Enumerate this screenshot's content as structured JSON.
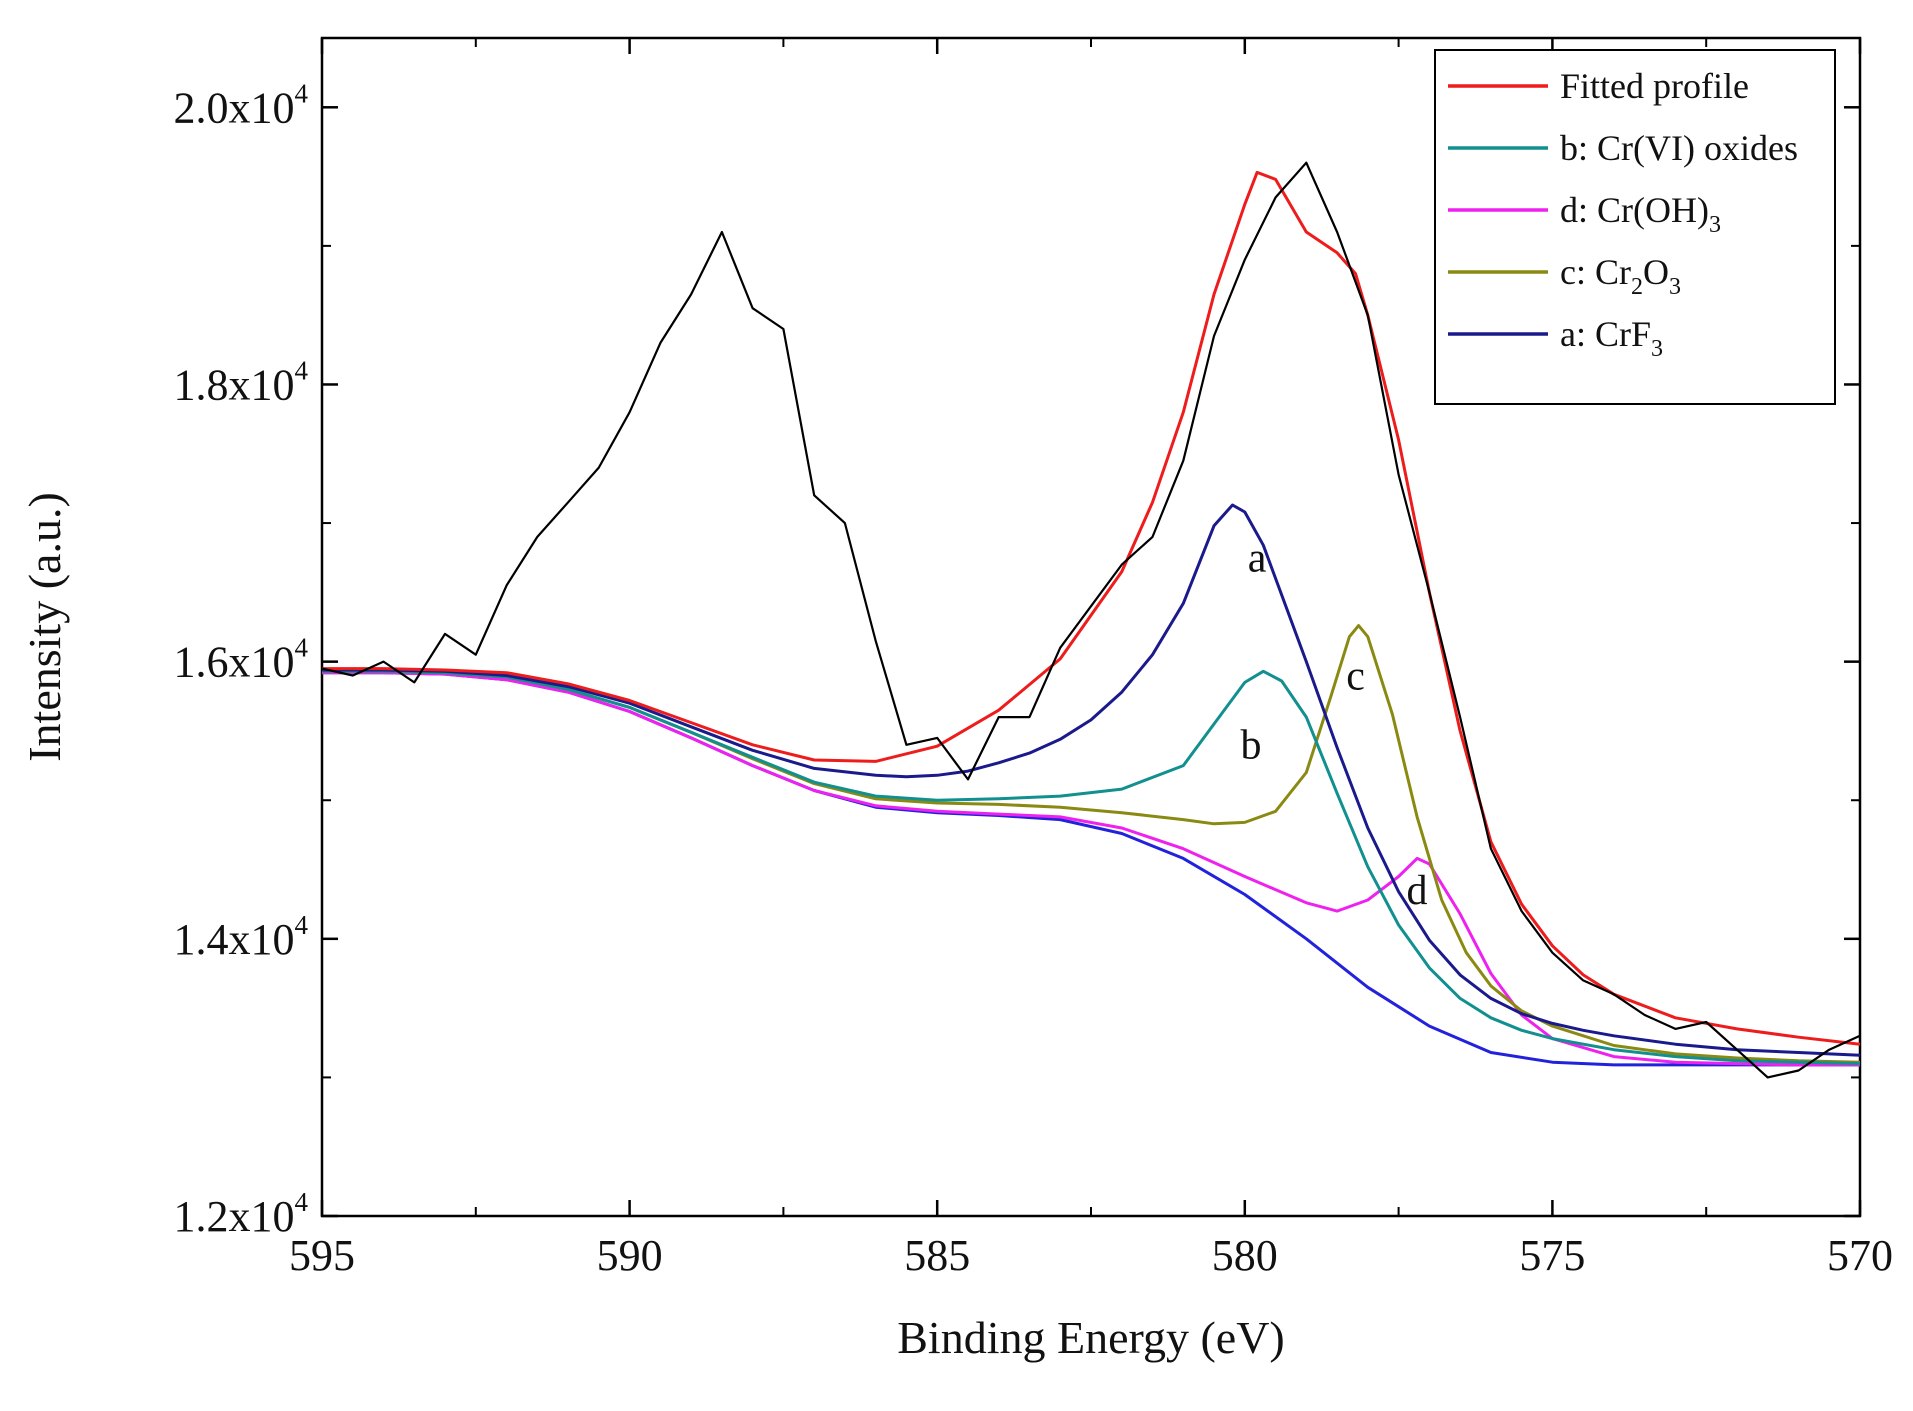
{
  "chart_data": {
    "type": "line",
    "title": "",
    "xlabel": "Binding Energy (eV)",
    "ylabel": "Intensity (a.u.)",
    "xlim": [
      595,
      570
    ],
    "ylim": [
      12000,
      20500
    ],
    "x_ticks": [
      {
        "value": 595,
        "label": "595"
      },
      {
        "value": 590,
        "label": "590"
      },
      {
        "value": 585,
        "label": "585"
      },
      {
        "value": 580,
        "label": "580"
      },
      {
        "value": 575,
        "label": "575"
      },
      {
        "value": 570,
        "label": "570"
      }
    ],
    "y_ticks": [
      {
        "value": 12000,
        "mantissa": "1.2x10",
        "exp": "4"
      },
      {
        "value": 14000,
        "mantissa": "1.4x10",
        "exp": "4"
      },
      {
        "value": 16000,
        "mantissa": "1.6x10",
        "exp": "4"
      },
      {
        "value": 18000,
        "mantissa": "1.8x10",
        "exp": "4"
      },
      {
        "value": 20000,
        "mantissa": "2.0x10",
        "exp": "4"
      }
    ],
    "legend": [
      {
        "key": "fitted",
        "text": "Fitted profile",
        "sub": "",
        "tail": "",
        "color": "#ee1c1c"
      },
      {
        "key": "b",
        "text": "b: Cr(VI) oxides",
        "sub": "",
        "tail": "",
        "color": "#128f8f"
      },
      {
        "key": "d",
        "text": "d: Cr(OH)",
        "sub": "3",
        "tail": "",
        "color": "#ee22ee"
      },
      {
        "key": "c",
        "text": "c: Cr",
        "sub": "2",
        "tail": "O",
        "sub2": "3",
        "color": "#8a8a12"
      },
      {
        "key": "a",
        "text": "a: CrF",
        "sub": "3",
        "tail": "",
        "color": "#1a1a8c"
      }
    ],
    "peak_labels": [
      {
        "text": "a",
        "x": 579.8,
        "y": 16650
      },
      {
        "text": "b",
        "x": 579.9,
        "y": 15300
      },
      {
        "text": "c",
        "x": 578.2,
        "y": 15800
      },
      {
        "text": "d",
        "x": 577.2,
        "y": 14250
      }
    ],
    "background_color": "#2222dd",
    "raw_color": "#000000",
    "series": [
      {
        "name": "Background",
        "color": "#2222dd",
        "x": [
          595,
          594,
          593,
          592,
          591,
          590,
          589,
          588,
          587,
          586,
          585,
          584,
          583,
          582,
          581,
          580,
          579,
          578,
          577,
          576,
          575,
          574,
          573,
          572,
          571,
          570
        ],
        "y": [
          15920,
          15920,
          15910,
          15870,
          15780,
          15640,
          15450,
          15250,
          15070,
          14950,
          14910,
          14890,
          14860,
          14760,
          14580,
          14320,
          14000,
          13650,
          13370,
          13180,
          13110,
          13090,
          13090,
          13090,
          13090,
          13090
        ]
      },
      {
        "name": "d: Cr(OH)3",
        "color": "#ee22ee",
        "x": [
          595,
          594,
          593,
          592,
          591,
          590,
          589,
          588,
          587,
          586,
          585,
          584,
          583,
          582,
          581,
          580,
          579,
          578.5,
          578,
          577.5,
          577.2,
          577,
          576.5,
          576,
          575.5,
          575,
          574,
          573,
          572,
          571,
          570
        ],
        "y": [
          15920,
          15920,
          15910,
          15870,
          15780,
          15640,
          15450,
          15250,
          15070,
          14960,
          14920,
          14900,
          14880,
          14800,
          14650,
          14450,
          14260,
          14200,
          14280,
          14450,
          14580,
          14540,
          14180,
          13750,
          13450,
          13280,
          13150,
          13110,
          13100,
          13090,
          13090
        ]
      },
      {
        "name": "c: Cr2O3",
        "color": "#8a8a12",
        "x": [
          595,
          594,
          593,
          592,
          591,
          590,
          589,
          588,
          587,
          586,
          585,
          584,
          583,
          582,
          581,
          580.5,
          580,
          579.5,
          579,
          578.6,
          578.3,
          578.15,
          578,
          577.6,
          577.2,
          576.8,
          576.4,
          576,
          575.5,
          575,
          574,
          573,
          572,
          571,
          570
        ],
        "y": [
          15930,
          15930,
          15920,
          15890,
          15800,
          15670,
          15490,
          15300,
          15120,
          15010,
          14980,
          14970,
          14950,
          14910,
          14860,
          14830,
          14840,
          14920,
          15200,
          15750,
          16180,
          16260,
          16180,
          15620,
          14880,
          14280,
          13900,
          13660,
          13480,
          13370,
          13230,
          13170,
          13140,
          13120,
          13110
        ]
      },
      {
        "name": "b: Cr(VI) oxides",
        "color": "#128f8f",
        "x": [
          595,
          594,
          593,
          592,
          591,
          590,
          589,
          588,
          587,
          586,
          585,
          584,
          583,
          582,
          581,
          580.5,
          580,
          579.7,
          579.4,
          579,
          578.5,
          578,
          577.5,
          577,
          576.5,
          576,
          575.5,
          575,
          574,
          573,
          572,
          571,
          570
        ],
        "y": [
          15930,
          15930,
          15920,
          15890,
          15800,
          15670,
          15490,
          15310,
          15130,
          15030,
          15000,
          15010,
          15030,
          15080,
          15250,
          15550,
          15850,
          15930,
          15860,
          15600,
          15050,
          14520,
          14100,
          13790,
          13570,
          13430,
          13340,
          13280,
          13200,
          13150,
          13120,
          13110,
          13100
        ]
      },
      {
        "name": "a: CrF3",
        "color": "#1a1a8c",
        "x": [
          595,
          594,
          593,
          592,
          591,
          590,
          589,
          588,
          587,
          586,
          585.5,
          585,
          584.5,
          584,
          583.5,
          583,
          582.5,
          582,
          581.5,
          581,
          580.5,
          580.2,
          580,
          579.7,
          579.5,
          579,
          578.5,
          578,
          577.5,
          577,
          576.5,
          576,
          575.5,
          575,
          574.5,
          574,
          573,
          572,
          571,
          570
        ],
        "y": [
          15940,
          15940,
          15930,
          15900,
          15820,
          15700,
          15530,
          15360,
          15230,
          15180,
          15170,
          15180,
          15210,
          15270,
          15340,
          15440,
          15580,
          15780,
          16050,
          16420,
          16980,
          17130,
          17080,
          16840,
          16600,
          16000,
          15380,
          14800,
          14340,
          13990,
          13740,
          13570,
          13460,
          13390,
          13340,
          13300,
          13240,
          13200,
          13180,
          13160
        ]
      },
      {
        "name": "Fitted profile",
        "color": "#ee1c1c",
        "x": [
          595,
          594,
          593,
          592,
          591,
          590,
          589,
          588,
          587,
          586,
          585,
          584,
          583,
          582,
          581.5,
          581,
          580.5,
          580,
          579.8,
          579.5,
          579,
          578.5,
          578.2,
          578,
          577.5,
          577,
          576.5,
          576,
          575.5,
          575,
          574.5,
          574,
          573,
          572,
          571,
          570
        ],
        "y": [
          15950,
          15950,
          15940,
          15920,
          15840,
          15720,
          15560,
          15400,
          15290,
          15280,
          15390,
          15650,
          16020,
          16650,
          17150,
          17800,
          18650,
          19300,
          19530,
          19480,
          19100,
          18950,
          18800,
          18500,
          17600,
          16500,
          15500,
          14700,
          14250,
          13950,
          13740,
          13600,
          13430,
          13350,
          13290,
          13240
        ]
      },
      {
        "name": "Raw data",
        "color": "#000000",
        "x": [
          595,
          594.5,
          594,
          593.5,
          593,
          592.5,
          592,
          591.5,
          591,
          590.5,
          590,
          589.5,
          589,
          588.5,
          588,
          587.5,
          587,
          586.5,
          586,
          585.5,
          585,
          584.5,
          584,
          583.5,
          583,
          582.5,
          582,
          581.5,
          581,
          580.5,
          580,
          579.5,
          579,
          578.5,
          578,
          577.5,
          577,
          576.5,
          576,
          575.5,
          575,
          574.5,
          574,
          573.5,
          573,
          572.5,
          572,
          571.5,
          571,
          570.5,
          570
        ],
        "y": [
          15950,
          15900,
          16000,
          15850,
          16200,
          16050,
          16550,
          16900,
          17150,
          17400,
          17800,
          18300,
          18650,
          19100,
          18550,
          18400,
          17200,
          17000,
          16150,
          15400,
          15450,
          15150,
          15600,
          15600,
          16100,
          16400,
          16700,
          16900,
          17450,
          18350,
          18900,
          19350,
          19600,
          19100,
          18500,
          17350,
          16500,
          15600,
          14650,
          14200,
          13900,
          13700,
          13600,
          13450,
          13350,
          13400,
          13200,
          13000,
          13050,
          13200,
          13300
        ]
      }
    ]
  }
}
